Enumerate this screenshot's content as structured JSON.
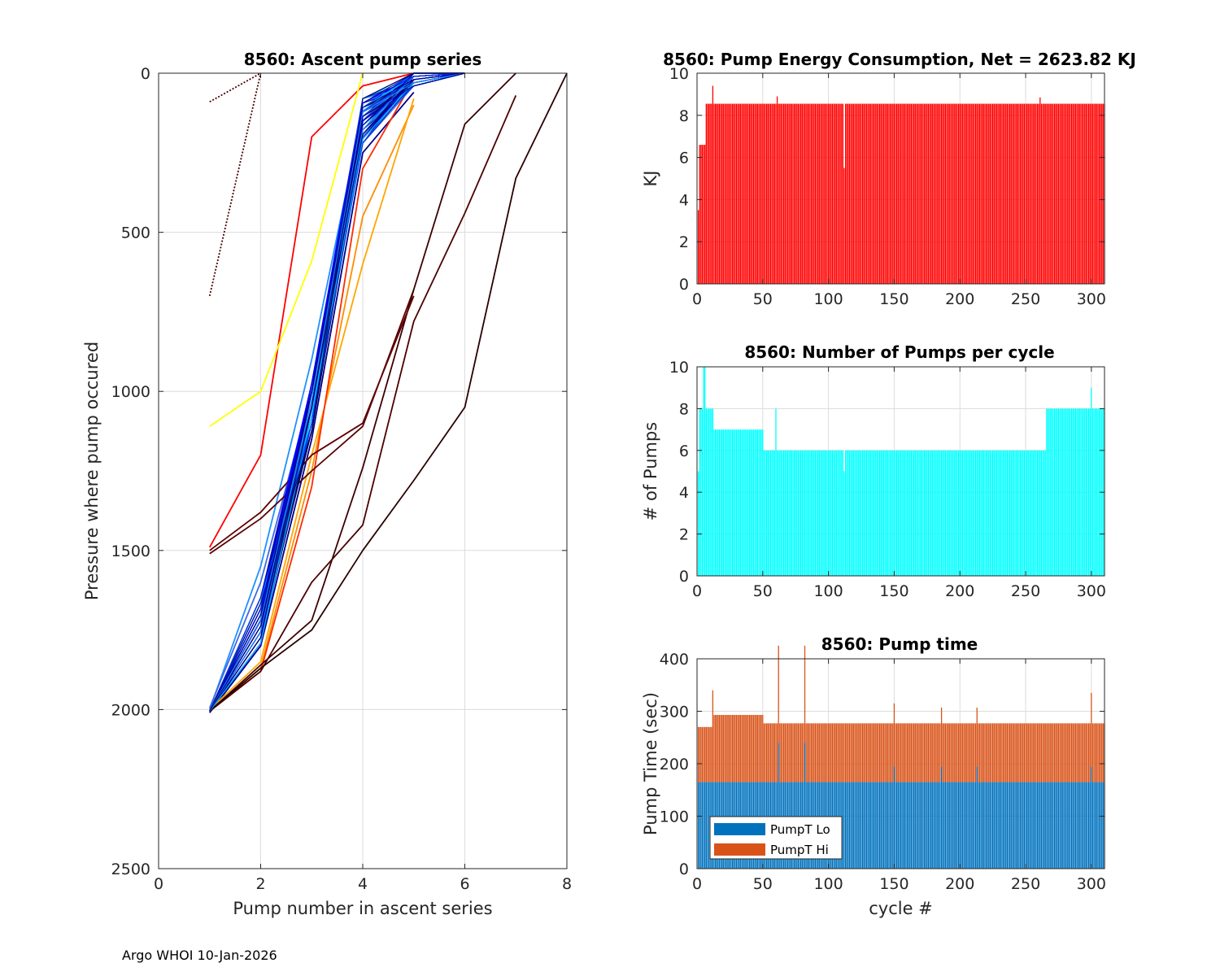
{
  "footer": "Argo WHOI 10-Jan-2026",
  "colors": {
    "energy": "#ff0000",
    "pumps": "#00ffff",
    "pump_lo": "#0072bd",
    "pump_hi": "#d95319",
    "grid": "#dcdcdc"
  },
  "chart_data": [
    {
      "id": "ascent",
      "type": "line",
      "title": "8560: Ascent pump series",
      "xlabel": "Pump number in ascent series",
      "ylabel": "Pressure where pump occured",
      "xlim": [
        0,
        8
      ],
      "ylim": [
        0,
        2500
      ],
      "y_reversed": true,
      "xticks": [
        0,
        2,
        4,
        6,
        8
      ],
      "yticks": [
        0,
        500,
        1000,
        1500,
        2000,
        2500
      ],
      "series": [
        {
          "name": "typical-deep",
          "color": "#0000cd",
          "x": [
            1,
            2,
            3,
            4,
            5,
            6
          ],
          "y": [
            2005,
            1720,
            1050,
            150,
            0,
            0
          ]
        },
        {
          "name": "typical-deep-2",
          "color": "#1e90ff",
          "x": [
            1,
            2,
            3,
            4,
            5,
            6
          ],
          "y": [
            2000,
            1550,
            900,
            120,
            0,
            0
          ]
        },
        {
          "name": "typical-deep-3",
          "color": "#00008b",
          "x": [
            1,
            2,
            3,
            4,
            5
          ],
          "y": [
            2010,
            1800,
            1150,
            250,
            60
          ]
        },
        {
          "name": "typical-deep-4",
          "color": "#4169e1",
          "x": [
            1,
            2,
            3,
            4,
            5
          ],
          "y": [
            1995,
            1600,
            1000,
            200,
            30
          ]
        },
        {
          "name": "orange-1",
          "color": "#ff8c00",
          "x": [
            1,
            2,
            3,
            4,
            5
          ],
          "y": [
            2005,
            1870,
            1250,
            450,
            100
          ]
        },
        {
          "name": "orange-2",
          "color": "#ffa500",
          "x": [
            1,
            2,
            3,
            4,
            5
          ],
          "y": [
            2000,
            1850,
            1200,
            600,
            80
          ]
        },
        {
          "name": "red-1",
          "color": "#ff2a00",
          "x": [
            1,
            2,
            3,
            4,
            5
          ],
          "y": [
            2005,
            1880,
            1300,
            300,
            20
          ]
        },
        {
          "name": "red-start-1500",
          "color": "#ff0000",
          "x": [
            1,
            2,
            3,
            4,
            5
          ],
          "y": [
            1490,
            1200,
            200,
            40,
            0
          ]
        },
        {
          "name": "yellow",
          "color": "#ffff00",
          "x": [
            1,
            2,
            3,
            4
          ],
          "y": [
            1110,
            1000,
            590,
            0
          ]
        },
        {
          "name": "dark-1",
          "color": "#5a0000",
          "x": [
            1,
            2,
            3,
            4,
            5
          ],
          "y": [
            1510,
            1400,
            1250,
            1110,
            680
          ]
        },
        {
          "name": "dark-2",
          "color": "#3c0000",
          "x": [
            1,
            2,
            3,
            4,
            5,
            6,
            7
          ],
          "y": [
            2005,
            1860,
            1720,
            1240,
            680,
            160,
            0
          ]
        },
        {
          "name": "dark-3",
          "color": "#4b0000",
          "x": [
            1,
            2,
            3,
            4,
            5,
            6,
            7
          ],
          "y": [
            2005,
            1880,
            1600,
            1420,
            780,
            440,
            70
          ]
        },
        {
          "name": "dark-4",
          "color": "#2a0000",
          "x": [
            1,
            2,
            3,
            4,
            5,
            6,
            7,
            8
          ],
          "y": [
            2005,
            1870,
            1750,
            1500,
            1280,
            1050,
            330,
            0
          ]
        },
        {
          "name": "dark-5",
          "color": "#600000",
          "x": [
            1,
            2,
            3,
            4,
            5
          ],
          "y": [
            1500,
            1380,
            1200,
            1100,
            700
          ]
        },
        {
          "name": "dotted-shallow",
          "color": "#4b0000",
          "dashed": true,
          "x": [
            1,
            2
          ],
          "y": [
            90,
            0
          ]
        },
        {
          "name": "dotted-mid",
          "color": "#4b0000",
          "dashed": true,
          "x": [
            1,
            2
          ],
          "y": [
            700,
            0
          ]
        }
      ]
    },
    {
      "id": "energy",
      "type": "bar",
      "title": "8560: Pump Energy Consumption,  Net = 2623.82 KJ",
      "xlabel": "",
      "ylabel": "KJ",
      "xlim": [
        0,
        310
      ],
      "ylim": [
        0,
        10
      ],
      "xticks": [
        0,
        50,
        100,
        150,
        200,
        250,
        300
      ],
      "yticks": [
        0,
        2,
        4,
        6,
        8,
        10
      ],
      "n_cycles": 310,
      "value_segments": [
        {
          "from": 1,
          "to": 1,
          "value": 3.5
        },
        {
          "from": 2,
          "to": 6,
          "value": 6.6
        },
        {
          "from": 7,
          "to": 310,
          "value": 8.55
        }
      ],
      "spikes": [
        {
          "cycle": 12,
          "value": 9.4
        },
        {
          "cycle": 61,
          "value": 8.9
        },
        {
          "cycle": 112,
          "value": 5.5
        },
        {
          "cycle": 261,
          "value": 8.85
        }
      ]
    },
    {
      "id": "pumps",
      "type": "bar",
      "title": "8560: Number of Pumps per cycle",
      "xlabel": "",
      "ylabel": "# of Pumps",
      "xlim": [
        0,
        310
      ],
      "ylim": [
        0,
        10
      ],
      "xticks": [
        0,
        50,
        100,
        150,
        200,
        250,
        300
      ],
      "yticks": [
        0,
        2,
        4,
        6,
        8,
        10
      ],
      "n_cycles": 310,
      "value_segments": [
        {
          "from": 1,
          "to": 1,
          "value": 5
        },
        {
          "from": 2,
          "to": 12,
          "value": 8
        },
        {
          "from": 13,
          "to": 50,
          "value": 7
        },
        {
          "from": 51,
          "to": 265,
          "value": 6
        },
        {
          "from": 266,
          "to": 310,
          "value": 8
        }
      ],
      "spikes": [
        {
          "cycle": 5,
          "value": 10
        },
        {
          "cycle": 6,
          "value": 10
        },
        {
          "cycle": 60,
          "value": 8
        },
        {
          "cycle": 112,
          "value": 5
        },
        {
          "cycle": 300,
          "value": 9
        }
      ]
    },
    {
      "id": "pumptime",
      "type": "bar",
      "stacked": true,
      "title": "8560: Pump time",
      "xlabel": "cycle #",
      "ylabel": "Pump Time (sec)",
      "xlim": [
        0,
        310
      ],
      "ylim": [
        0,
        400
      ],
      "xticks": [
        0,
        50,
        100,
        150,
        200,
        250,
        300
      ],
      "yticks": [
        0,
        100,
        200,
        300,
        400
      ],
      "legend": [
        "PumpT Lo",
        "PumpT Hi"
      ],
      "legend_position": "bottom-left",
      "n_cycles": 310,
      "series": [
        {
          "name": "PumpT Lo",
          "color": "#0072bd",
          "segments": [
            {
              "from": 1,
              "to": 310,
              "value": 165
            }
          ],
          "spikes": [
            {
              "cycle": 62,
              "value": 240
            },
            {
              "cycle": 82,
              "value": 240
            },
            {
              "cycle": 150,
              "value": 195
            },
            {
              "cycle": 186,
              "value": 195
            },
            {
              "cycle": 213,
              "value": 195
            },
            {
              "cycle": 300,
              "value": 195
            }
          ]
        },
        {
          "name": "PumpT Hi",
          "color": "#d95319",
          "segments": [
            {
              "from": 1,
              "to": 12,
              "value": 105
            },
            {
              "from": 13,
              "to": 50,
              "value": 128
            },
            {
              "from": 51,
              "to": 310,
              "value": 112
            }
          ],
          "spikes": [
            {
              "cycle": 12,
              "value": 175
            },
            {
              "cycle": 62,
              "value": 185
            },
            {
              "cycle": 82,
              "value": 185
            },
            {
              "cycle": 150,
              "value": 120
            },
            {
              "cycle": 300,
              "value": 140
            }
          ]
        }
      ]
    }
  ]
}
